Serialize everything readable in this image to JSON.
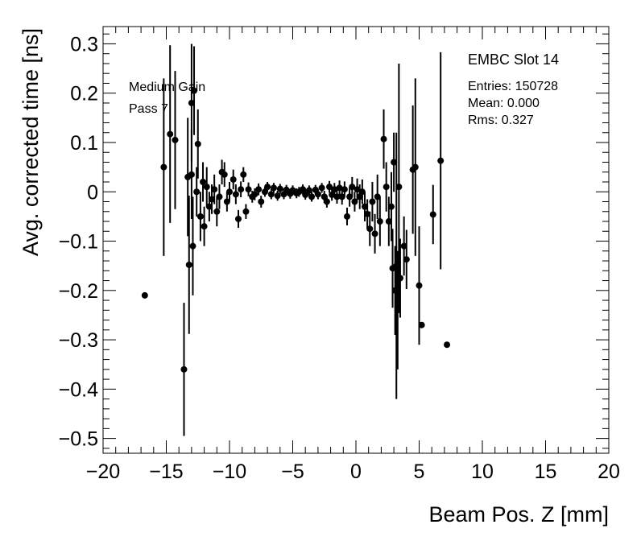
{
  "chart_data": {
    "type": "scatter",
    "title": "",
    "xlabel": "Beam Pos. Z [mm]",
    "ylabel": "Avg. corrected time [ns]",
    "xlim": [
      -20,
      20
    ],
    "ylim": [
      -0.53,
      0.335
    ],
    "grid": false,
    "x_ticks": [
      -20,
      -15,
      -10,
      -5,
      0,
      5,
      10,
      15,
      20
    ],
    "x_tick_labels": [
      "−20",
      "−15",
      "−10",
      "−5",
      "0",
      "5",
      "10",
      "15",
      "20"
    ],
    "y_ticks": [
      0.3,
      0.2,
      0.1,
      0,
      -0.1,
      -0.2,
      -0.3,
      -0.4,
      -0.5
    ],
    "y_tick_labels": [
      "0.3",
      "0.2",
      "0.1",
      "0",
      "−0.1",
      "−0.2",
      "−0.3",
      "−0.4",
      "−0.5"
    ],
    "annotations": {
      "line1": "Medium Gain",
      "line2": "Pass 7"
    },
    "stats": {
      "title": "EMBC Slot 14",
      "entries": "Entries: 150728",
      "mean": "Mean: 0.000",
      "rms": "Rms: 0.327"
    },
    "points": [
      {
        "x": -16.7,
        "y": -0.21,
        "err": 0
      },
      {
        "x": -15.2,
        "y": 0.05,
        "err": 0.18
      },
      {
        "x": -14.7,
        "y": 0.117,
        "err": 0.18
      },
      {
        "x": -14.3,
        "y": 0.105,
        "err": 0.14
      },
      {
        "x": -13.6,
        "y": -0.36,
        "err": 0.135
      },
      {
        "x": -13.3,
        "y": 0.03,
        "err": 0.12
      },
      {
        "x": -13.2,
        "y": -0.148,
        "err": 0.14
      },
      {
        "x": -13.0,
        "y": 0.18,
        "err": 0.12
      },
      {
        "x": -13.0,
        "y": 0.035,
        "err": 0.09
      },
      {
        "x": -12.9,
        "y": -0.11,
        "err": 0.1
      },
      {
        "x": -12.8,
        "y": 0.205,
        "err": 0.09
      },
      {
        "x": -12.5,
        "y": 0.097,
        "err": 0.07
      },
      {
        "x": -12.6,
        "y": 0.0,
        "err": 0.05
      },
      {
        "x": -12.3,
        "y": -0.05,
        "err": 0.05
      },
      {
        "x": -12.1,
        "y": 0.02,
        "err": 0.04
      },
      {
        "x": -12.0,
        "y": -0.07,
        "err": 0.04
      },
      {
        "x": -11.8,
        "y": 0.01,
        "err": 0.04
      },
      {
        "x": -11.6,
        "y": -0.03,
        "err": 0.03
      },
      {
        "x": -11.4,
        "y": -0.015,
        "err": 0.03
      },
      {
        "x": -11.2,
        "y": 0.005,
        "err": 0.03
      },
      {
        "x": -11.0,
        "y": -0.04,
        "err": 0.03
      },
      {
        "x": -10.8,
        "y": -0.01,
        "err": 0.025
      },
      {
        "x": -10.6,
        "y": 0.04,
        "err": 0.025
      },
      {
        "x": -10.4,
        "y": 0.035,
        "err": 0.025
      },
      {
        "x": -10.2,
        "y": -0.02,
        "err": 0.02
      },
      {
        "x": -10.0,
        "y": 0.0,
        "err": 0.02
      },
      {
        "x": -9.7,
        "y": 0.025,
        "err": 0.02
      },
      {
        "x": -9.5,
        "y": -0.005,
        "err": 0.02
      },
      {
        "x": -9.3,
        "y": -0.055,
        "err": 0.018
      },
      {
        "x": -9.1,
        "y": 0.005,
        "err": 0.016
      },
      {
        "x": -8.9,
        "y": 0.035,
        "err": 0.015
      },
      {
        "x": -8.7,
        "y": -0.04,
        "err": 0.015
      },
      {
        "x": -8.5,
        "y": 0.005,
        "err": 0.014
      },
      {
        "x": -8.2,
        "y": -0.01,
        "err": 0.012
      },
      {
        "x": -8.0,
        "y": -0.005,
        "err": 0.012
      },
      {
        "x": -7.7,
        "y": 0.005,
        "err": 0.012
      },
      {
        "x": -7.5,
        "y": -0.02,
        "err": 0.012
      },
      {
        "x": -7.2,
        "y": 0.0,
        "err": 0.01
      },
      {
        "x": -7.0,
        "y": 0.01,
        "err": 0.01
      },
      {
        "x": -6.7,
        "y": -0.005,
        "err": 0.01
      },
      {
        "x": -6.5,
        "y": 0.008,
        "err": 0.01
      },
      {
        "x": -6.2,
        "y": -0.008,
        "err": 0.01
      },
      {
        "x": -6.0,
        "y": 0.006,
        "err": 0.01
      },
      {
        "x": -5.7,
        "y": -0.005,
        "err": 0.01
      },
      {
        "x": -5.5,
        "y": 0.004,
        "err": 0.01
      },
      {
        "x": -5.2,
        "y": -0.004,
        "err": 0.01
      },
      {
        "x": -5.0,
        "y": 0.003,
        "err": 0.01
      },
      {
        "x": -4.7,
        "y": -0.003,
        "err": 0.01
      },
      {
        "x": -4.5,
        "y": 0.0,
        "err": 0.01
      },
      {
        "x": -4.2,
        "y": 0.005,
        "err": 0.01
      },
      {
        "x": -4.0,
        "y": -0.006,
        "err": 0.01
      },
      {
        "x": -3.7,
        "y": 0.003,
        "err": 0.01
      },
      {
        "x": -3.5,
        "y": -0.01,
        "err": 0.01
      },
      {
        "x": -3.2,
        "y": 0.004,
        "err": 0.01
      },
      {
        "x": -3.0,
        "y": -0.005,
        "err": 0.01
      },
      {
        "x": -2.7,
        "y": 0.008,
        "err": 0.01
      },
      {
        "x": -2.5,
        "y": -0.01,
        "err": 0.012
      },
      {
        "x": -2.3,
        "y": -0.02,
        "err": 0.012
      },
      {
        "x": -2.1,
        "y": 0.01,
        "err": 0.012
      },
      {
        "x": -1.9,
        "y": -0.006,
        "err": 0.012
      },
      {
        "x": -1.7,
        "y": 0.005,
        "err": 0.013
      },
      {
        "x": -1.5,
        "y": -0.01,
        "err": 0.014
      },
      {
        "x": -1.3,
        "y": 0.008,
        "err": 0.015
      },
      {
        "x": -1.1,
        "y": -0.01,
        "err": 0.016
      },
      {
        "x": -0.9,
        "y": 0.005,
        "err": 0.016
      },
      {
        "x": -0.7,
        "y": -0.05,
        "err": 0.018
      },
      {
        "x": -0.5,
        "y": -0.01,
        "err": 0.02
      },
      {
        "x": -0.3,
        "y": 0.01,
        "err": 0.02
      },
      {
        "x": -0.1,
        "y": -0.02,
        "err": 0.02
      },
      {
        "x": 0.1,
        "y": 0.005,
        "err": 0.022
      },
      {
        "x": 0.3,
        "y": -0.01,
        "err": 0.025
      },
      {
        "x": 0.5,
        "y": 0.0,
        "err": 0.025
      },
      {
        "x": 0.7,
        "y": -0.03,
        "err": 0.03
      },
      {
        "x": 0.9,
        "y": -0.045,
        "err": 0.03
      },
      {
        "x": 1.1,
        "y": -0.075,
        "err": 0.035
      },
      {
        "x": 1.3,
        "y": -0.02,
        "err": 0.04
      },
      {
        "x": 1.5,
        "y": -0.085,
        "err": 0.04
      },
      {
        "x": 1.7,
        "y": -0.01,
        "err": 0.045
      },
      {
        "x": 1.9,
        "y": -0.06,
        "err": 0.05
      },
      {
        "x": 2.2,
        "y": 0.107,
        "err": 0.06
      },
      {
        "x": 2.4,
        "y": 0.01,
        "err": 0.05
      },
      {
        "x": 2.6,
        "y": -0.06,
        "err": 0.05
      },
      {
        "x": 2.8,
        "y": -0.03,
        "err": 0.07
      },
      {
        "x": 2.9,
        "y": -0.155,
        "err": 0.08
      },
      {
        "x": 3.0,
        "y": 0.06,
        "err": 0.06
      },
      {
        "x": 3.1,
        "y": -0.2,
        "err": 0.09
      },
      {
        "x": 3.2,
        "y": -0.15,
        "err": 0.27
      },
      {
        "x": 3.3,
        "y": -0.24,
        "err": 0.12
      },
      {
        "x": 3.4,
        "y": 0.01,
        "err": 0.25
      },
      {
        "x": 3.5,
        "y": -0.175,
        "err": 0.08
      },
      {
        "x": 3.8,
        "y": -0.11,
        "err": 0.06
      },
      {
        "x": 4.0,
        "y": -0.137,
        "err": 0.06
      },
      {
        "x": 4.5,
        "y": 0.045,
        "err": 0.13
      },
      {
        "x": 4.7,
        "y": 0.05,
        "err": 0.18
      },
      {
        "x": 5.0,
        "y": -0.19,
        "err": 0.12
      },
      {
        "x": 5.2,
        "y": -0.27,
        "err": 0
      },
      {
        "x": 6.1,
        "y": -0.046,
        "err": 0.06
      },
      {
        "x": 6.7,
        "y": 0.063,
        "err": 0.22
      },
      {
        "x": 7.2,
        "y": -0.31,
        "err": 0
      }
    ]
  }
}
